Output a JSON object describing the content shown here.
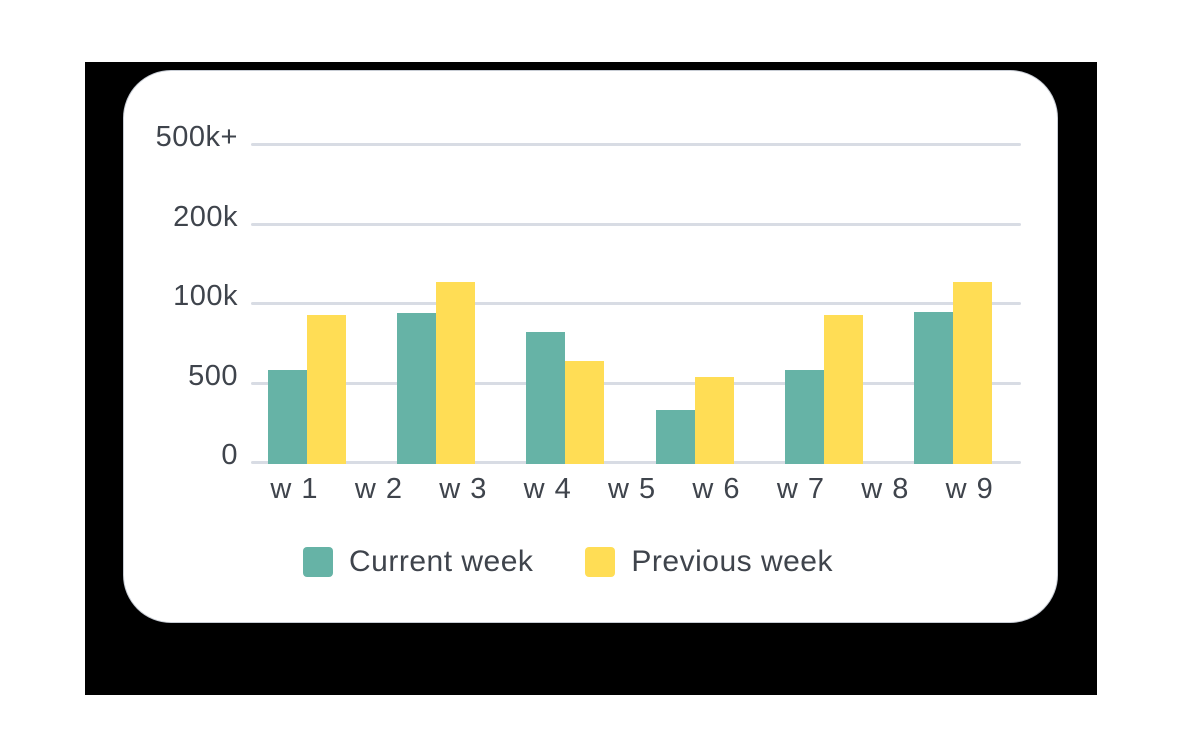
{
  "colors": {
    "backdrop": "#000000",
    "card_bg": "#ffffff",
    "card_border": "#c7ccd4",
    "gridline": "#d8dce4",
    "axis_text": "#3f444c",
    "legend_text": "#3f444c",
    "current_week": "#66b3a6",
    "previous_week": "#ffdd55"
  },
  "chart_data": {
    "type": "bar",
    "title": "",
    "xlabel": "",
    "ylabel": "",
    "grid": true,
    "legend_position": "bottom",
    "categories": [
      "w 1",
      "w 2",
      "w 3",
      "w 4",
      "w 5",
      "w 6",
      "w 7",
      "w 8",
      "w 9"
    ],
    "y_axis": {
      "tick_labels": [
        "0",
        "500",
        "100k",
        "200k",
        "500k+"
      ],
      "scale_note": "ticks equally spaced on screen (non-linear value scale)"
    },
    "series": [
      {
        "name": "Current week",
        "color": "#66b3a6",
        "bar_heights_in_gridline_units": [
          1.18,
          0,
          1.9,
          1.66,
          0,
          0.68,
          1.18,
          0,
          1.91
        ]
      },
      {
        "name": "Previous week",
        "color": "#ffdd55",
        "bar_heights_in_gridline_units": [
          1.87,
          0,
          2.29,
          1.29,
          0,
          1.09,
          1.87,
          0,
          2.29
        ]
      }
    ]
  }
}
